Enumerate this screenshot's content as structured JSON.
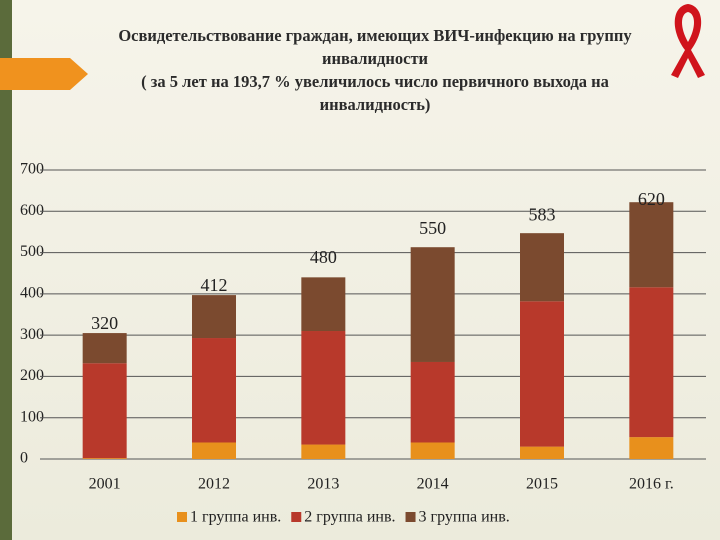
{
  "chart_data": {
    "type": "stacked_bar",
    "title": "Освидетельствование граждан, имеющих ВИЧ-инфекцию на группу инвалидности",
    "subtitle": "( за 5 лет на 193,7 % увеличилось число первичного выхода на инвалидность)",
    "categories": [
      "2001",
      "2012",
      "2013",
      "2014",
      "2015",
      "2016 г."
    ],
    "series": [
      {
        "name": "1 группа инв.",
        "color": "#e8901c",
        "values": [
          2,
          40,
          35,
          40,
          30,
          53
        ]
      },
      {
        "name": "2 группа инв.",
        "color": "#b8392b",
        "values": [
          230,
          253,
          275,
          195,
          352,
          363
        ]
      },
      {
        "name": "3 группа инв.",
        "color": "#7b4a2f",
        "values": [
          73,
          104,
          130,
          278,
          165,
          206
        ]
      }
    ],
    "annotations": [
      320,
      412,
      480,
      550,
      583,
      620
    ],
    "ylim": [
      0,
      700
    ],
    "yticks": [
      0,
      100,
      200,
      300,
      400,
      500,
      600,
      700
    ],
    "grid": true,
    "legend": "bottom"
  }
}
